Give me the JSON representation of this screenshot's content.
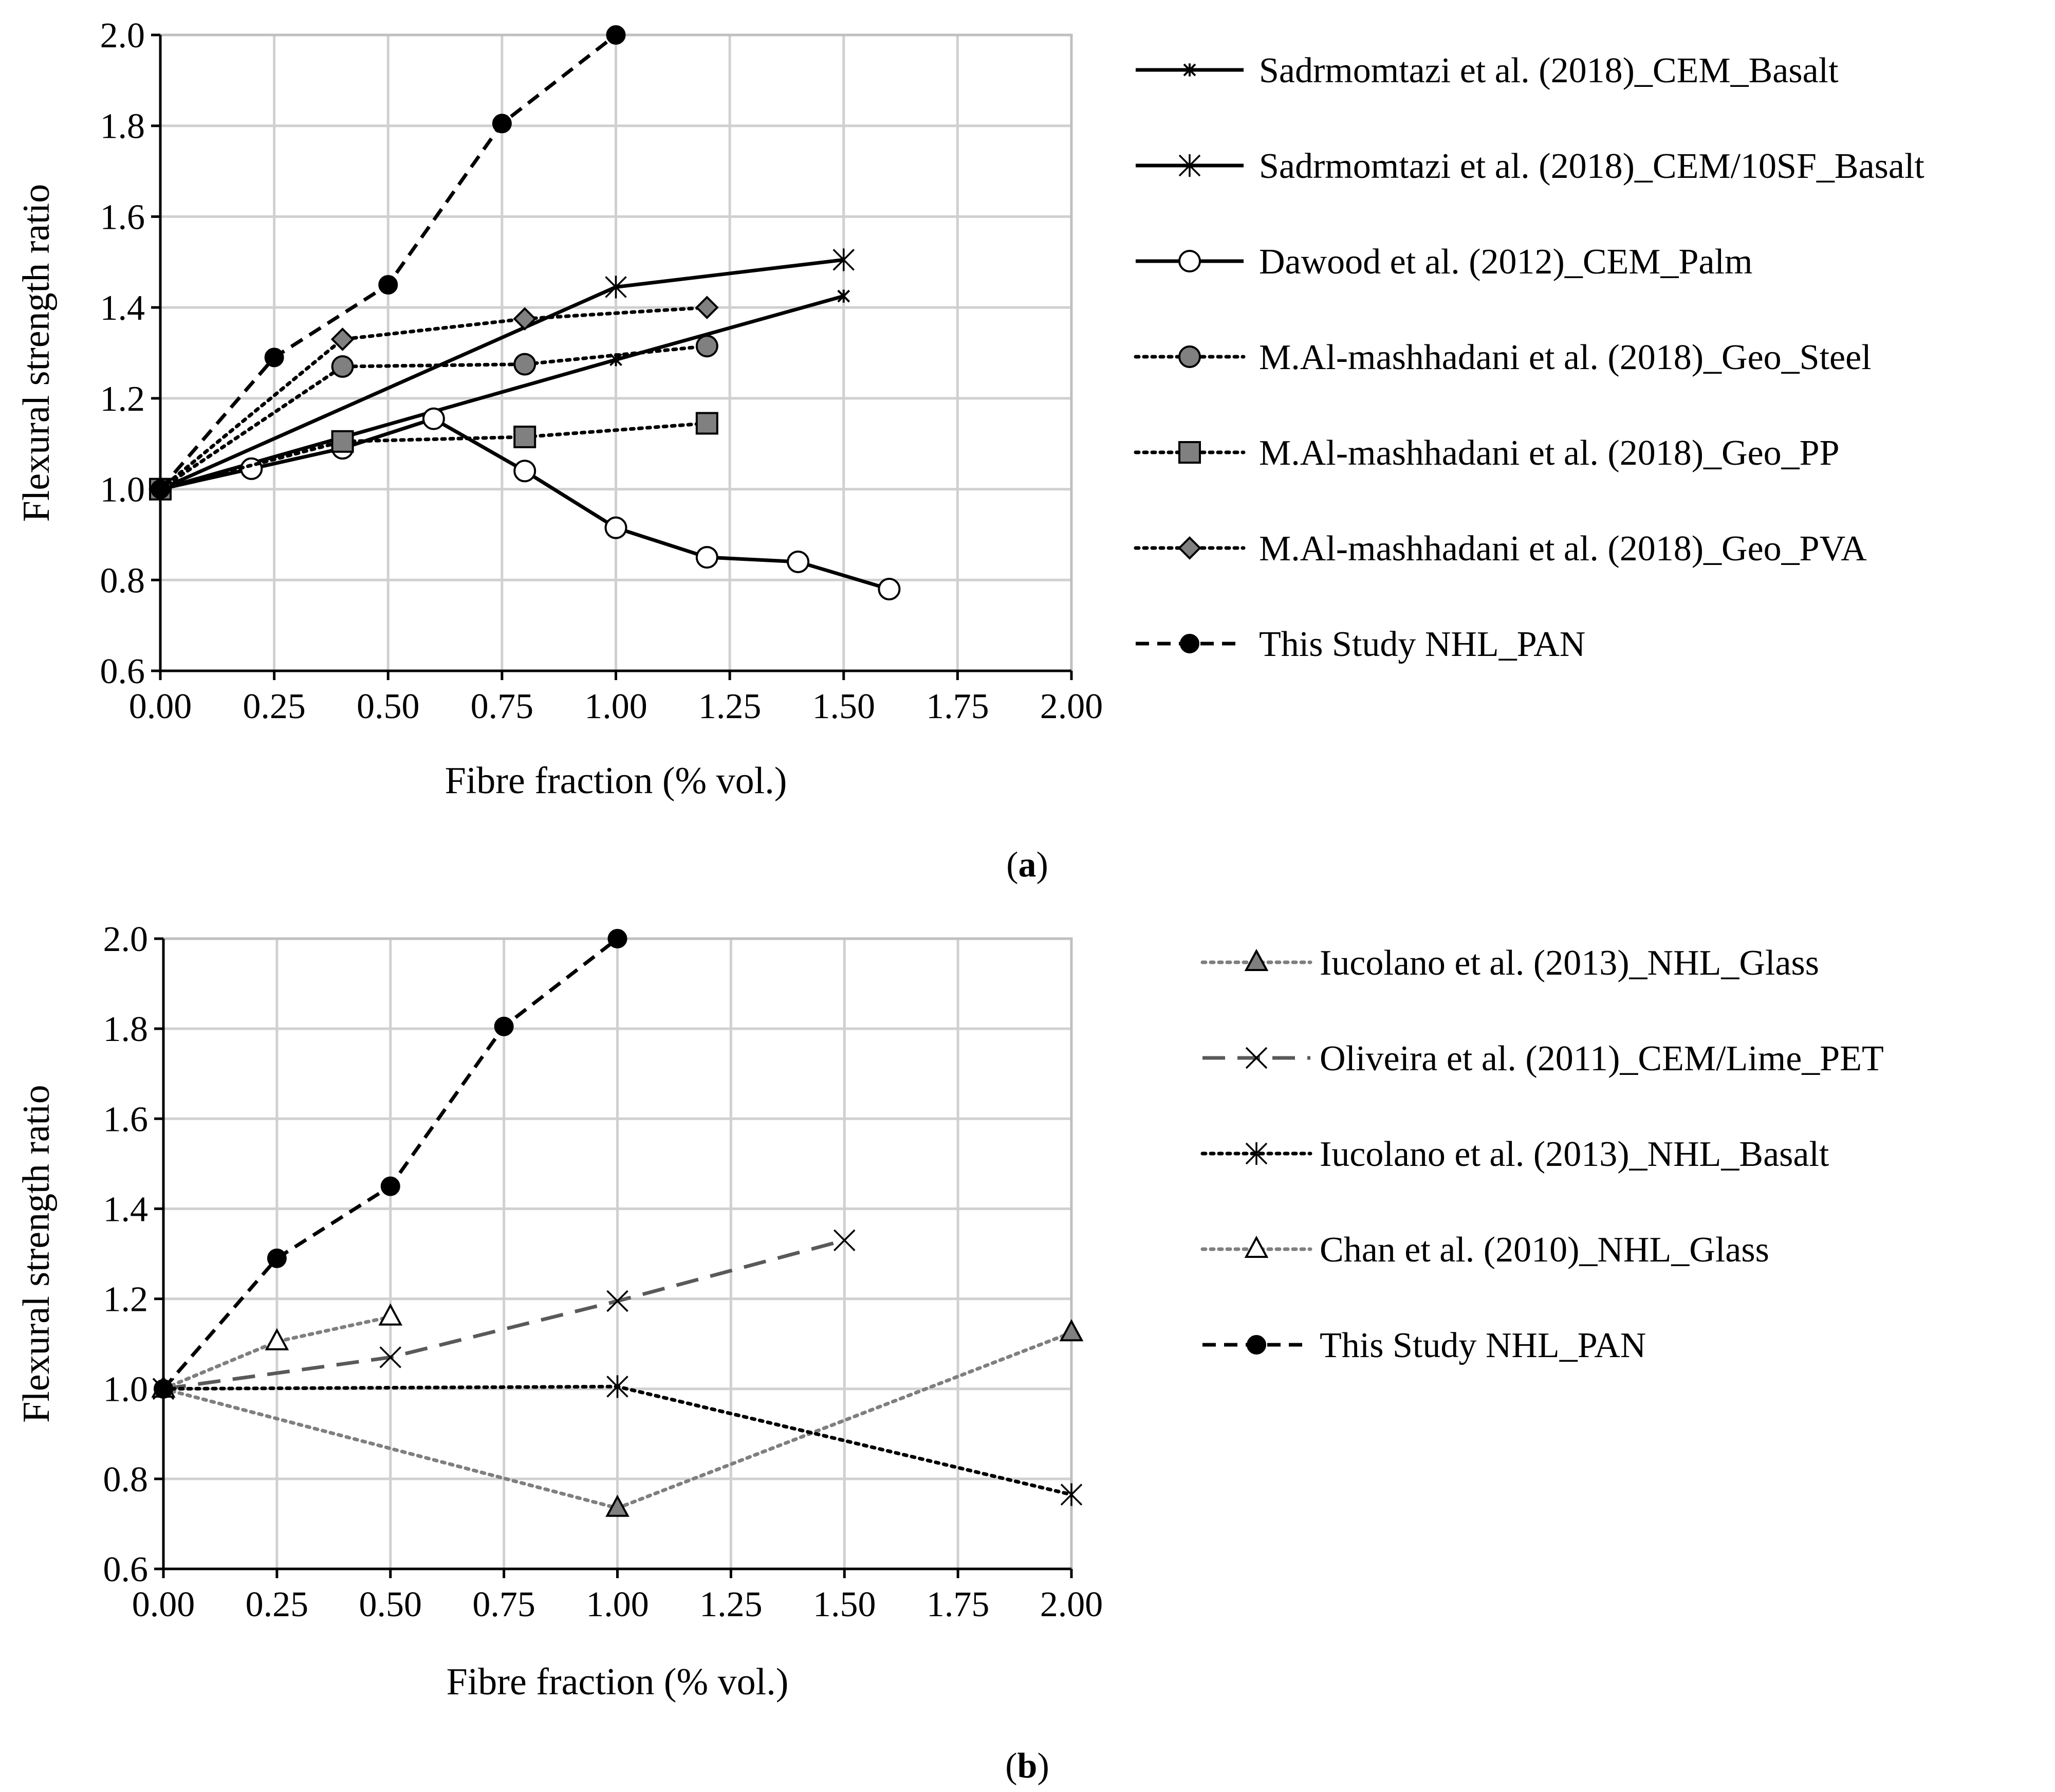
{
  "chart_data": [
    {
      "type": "line",
      "panel_label": "a",
      "xlabel": "Fibre fraction (% vol.)",
      "ylabel": "Flexural strength ratio",
      "xlim": [
        0,
        2
      ],
      "ylim": [
        0.6,
        2.0
      ],
      "x_ticks": [
        "0.00",
        "0.25",
        "0.50",
        "0.75",
        "1.00",
        "1.25",
        "1.50",
        "1.75",
        "2.00"
      ],
      "y_ticks": [
        "0.6",
        "0.8",
        "1.0",
        "1.2",
        "1.4",
        "1.6",
        "1.8",
        "2.0"
      ],
      "grid": true,
      "legend_position": "right",
      "series": [
        {
          "name": "Sadrmomtazi et al. (2018)_CEM_Basalt",
          "line": "solid",
          "color": "#000000",
          "marker": "star-small",
          "x": [
            0,
            1.0,
            1.5
          ],
          "y": [
            1.0,
            1.285,
            1.425
          ]
        },
        {
          "name": "Sadrmomtazi et al. (2018)_CEM/10SF_Basalt",
          "line": "solid",
          "color": "#000000",
          "marker": "asterisk",
          "x": [
            0,
            1.0,
            1.5
          ],
          "y": [
            1.0,
            1.445,
            1.505
          ]
        },
        {
          "name": "Dawood et al. (2012)_CEM_Palm",
          "line": "solid",
          "color": "#000000",
          "marker": "open-circle",
          "x": [
            0,
            0.2,
            0.4,
            0.6,
            0.8,
            1.0,
            1.2,
            1.4,
            1.6
          ],
          "y": [
            1.0,
            1.045,
            1.09,
            1.155,
            1.04,
            0.915,
            0.85,
            0.84,
            0.78
          ]
        },
        {
          "name": "M.Al-mashhadani et al. (2018)_Geo_Steel",
          "line": "dotted",
          "color": "#000000",
          "marker": "gray-circle",
          "x": [
            0,
            0.4,
            0.8,
            1.2
          ],
          "y": [
            1.0,
            1.27,
            1.275,
            1.315
          ]
        },
        {
          "name": "M.Al-mashhadani et al. (2018)_Geo_PP",
          "line": "dotted",
          "color": "#000000",
          "marker": "gray-square",
          "x": [
            0,
            0.4,
            0.8,
            1.2
          ],
          "y": [
            1.0,
            1.105,
            1.115,
            1.145
          ]
        },
        {
          "name": "M.Al-mashhadani et al. (2018)_Geo_PVA",
          "line": "dotted",
          "color": "#000000",
          "marker": "gray-diamond",
          "x": [
            0,
            0.4,
            0.8,
            1.2
          ],
          "y": [
            1.0,
            1.33,
            1.375,
            1.4
          ]
        },
        {
          "name": "This Study NHL_PAN",
          "line": "dashed",
          "color": "#000000",
          "marker": "filled-circle",
          "x": [
            0,
            0.25,
            0.5,
            0.75,
            1.0
          ],
          "y": [
            1.0,
            1.29,
            1.45,
            1.805,
            2.0
          ]
        }
      ]
    },
    {
      "type": "line",
      "panel_label": "b",
      "xlabel": "Fibre fraction (% vol.)",
      "ylabel": "Flexural strength ratio",
      "xlim": [
        0,
        2
      ],
      "ylim": [
        0.6,
        2.0
      ],
      "x_ticks": [
        "0.00",
        "0.25",
        "0.50",
        "0.75",
        "1.00",
        "1.25",
        "1.50",
        "1.75",
        "2.00"
      ],
      "y_ticks": [
        "0.6",
        "0.8",
        "1.0",
        "1.2",
        "1.4",
        "1.6",
        "1.8",
        "2.0"
      ],
      "grid": true,
      "legend_position": "right",
      "series": [
        {
          "name": "Iucolano et al. (2013)_NHL_Glass",
          "line": "dotted",
          "color": "#7f7f7f",
          "marker": "gray-triangle",
          "x": [
            0,
            1.0,
            2.0
          ],
          "y": [
            1.0,
            0.735,
            1.125
          ]
        },
        {
          "name": "Oliveira et al. (2011)_CEM/Lime_PET",
          "line": "longdash",
          "color": "#595959",
          "marker": "x-mark",
          "x": [
            0,
            0.5,
            1.0,
            1.5
          ],
          "y": [
            1.0,
            1.07,
            1.195,
            1.33
          ]
        },
        {
          "name": "Iucolano et al. (2013)_NHL_Basalt",
          "line": "dotted",
          "color": "#000000",
          "marker": "asterisk",
          "x": [
            0,
            1.0,
            2.0
          ],
          "y": [
            1.0,
            1.005,
            0.765
          ]
        },
        {
          "name": "Chan et al. (2010)_NHL_Glass",
          "line": "dotted",
          "color": "#7f7f7f",
          "marker": "open-triangle",
          "x": [
            0,
            0.25,
            0.5
          ],
          "y": [
            1.0,
            1.105,
            1.16
          ]
        },
        {
          "name": "This Study NHL_PAN",
          "line": "dashed",
          "color": "#000000",
          "marker": "filled-circle",
          "x": [
            0,
            0.25,
            0.5,
            0.75,
            1.0
          ],
          "y": [
            1.0,
            1.29,
            1.45,
            1.805,
            2.0
          ]
        }
      ]
    }
  ]
}
